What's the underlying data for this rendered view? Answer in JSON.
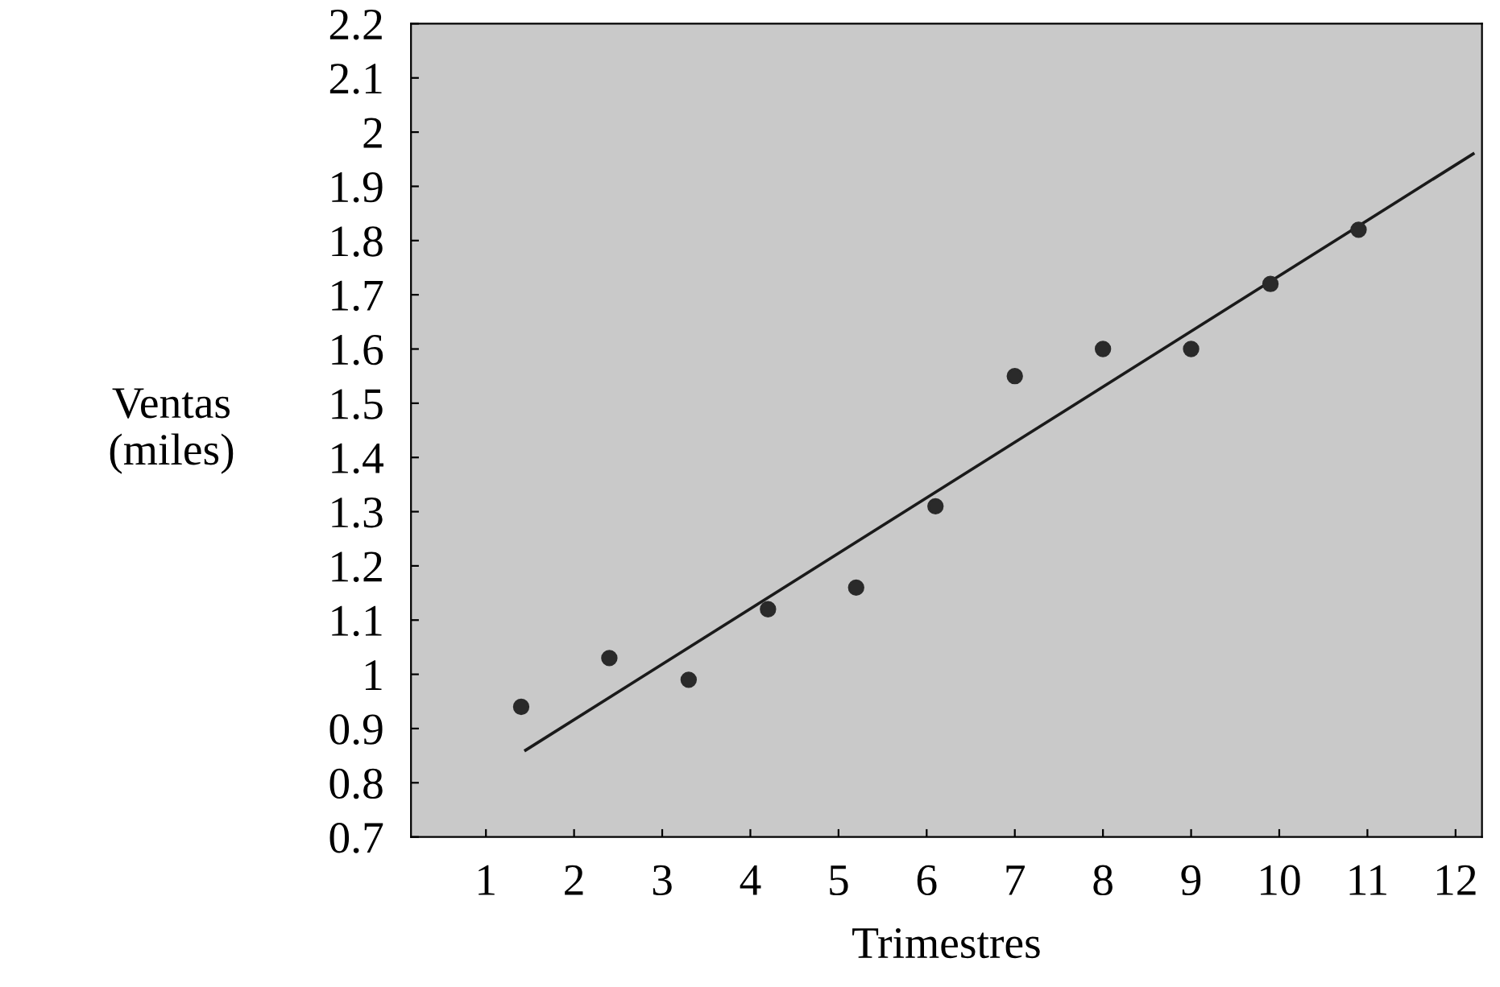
{
  "chart_data": {
    "type": "scatter",
    "xlabel": "Trimestres",
    "ylabel": "Ventas\n(miles)",
    "x": [
      1.4,
      2.4,
      3.3,
      4.2,
      5.2,
      6.1,
      7.0,
      8.0,
      9.0,
      9.9,
      10.9
    ],
    "series": [
      {
        "color": "#2a2a2a",
        "values": [
          0.94,
          1.03,
          0.99,
          1.12,
          1.16,
          1.31,
          1.55,
          1.6,
          1.6,
          1.72,
          1.82
        ]
      },
      {
        "type": "line",
        "marker": "none",
        "color": "#1a1a1a",
        "x": [
          1.45,
          12.2
        ],
        "values": [
          0.86,
          1.96
        ]
      }
    ],
    "xlim": [
      0.15,
      12.3
    ],
    "ylim": [
      0.7,
      2.2
    ],
    "xticks": [
      1,
      2,
      3,
      4,
      5,
      6,
      7,
      8,
      9,
      10,
      11,
      12
    ],
    "yticks": [
      0.7,
      0.8,
      0.9,
      1,
      1.1,
      1.2,
      1.3,
      1.4,
      1.5,
      1.6,
      1.7,
      1.8,
      1.9,
      2,
      2.1,
      2.2
    ],
    "marker": "circle",
    "grid": false,
    "legend": false
  }
}
